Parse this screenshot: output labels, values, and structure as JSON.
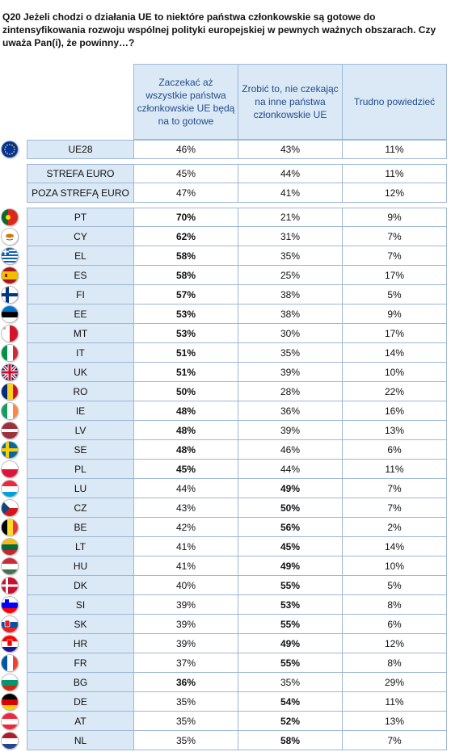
{
  "question": "Q20 Jeżeli chodzi o działania UE to niektóre państwa członkowskie są gotowe do zintensyfikowania rozwoju wspólnej polityki europejskiej w pewnych ważnych obszarach. Czy uważa Pan(i), że powinny…?",
  "columns": [
    "Zaczekać aż wszystkie państwa członkowskie UE będą na to gotowe",
    "Zrobić to, nie czekając na inne państwa członkowskie UE",
    "Trudno powiedzieć"
  ],
  "rows": [
    {
      "label": "UE28",
      "v1": "46%",
      "v2": "43%",
      "v3": "11%"
    },
    {
      "label": "STREFA EURO",
      "v1": "45%",
      "v2": "44%",
      "v3": "11%"
    },
    {
      "label": "POZA STREFĄ EURO",
      "v1": "47%",
      "v2": "41%",
      "v3": "12%"
    },
    {
      "label": "PT",
      "v1": "70%",
      "v2": "21%",
      "v3": "9%"
    },
    {
      "label": "CY",
      "v1": "62%",
      "v2": "31%",
      "v3": "7%"
    },
    {
      "label": "EL",
      "v1": "58%",
      "v2": "35%",
      "v3": "7%"
    },
    {
      "label": "ES",
      "v1": "58%",
      "v2": "25%",
      "v3": "17%"
    },
    {
      "label": "FI",
      "v1": "57%",
      "v2": "38%",
      "v3": "5%"
    },
    {
      "label": "EE",
      "v1": "53%",
      "v2": "38%",
      "v3": "9%"
    },
    {
      "label": "MT",
      "v1": "53%",
      "v2": "30%",
      "v3": "17%"
    },
    {
      "label": "IT",
      "v1": "51%",
      "v2": "35%",
      "v3": "14%"
    },
    {
      "label": "UK",
      "v1": "51%",
      "v2": "39%",
      "v3": "10%"
    },
    {
      "label": "RO",
      "v1": "50%",
      "v2": "28%",
      "v3": "22%"
    },
    {
      "label": "IE",
      "v1": "48%",
      "v2": "36%",
      "v3": "16%"
    },
    {
      "label": "LV",
      "v1": "48%",
      "v2": "39%",
      "v3": "13%"
    },
    {
      "label": "SE",
      "v1": "48%",
      "v2": "46%",
      "v3": "6%"
    },
    {
      "label": "PL",
      "v1": "45%",
      "v2": "44%",
      "v3": "11%"
    },
    {
      "label": "LU",
      "v1": "44%",
      "v2": "49%",
      "v3": "7%"
    },
    {
      "label": "CZ",
      "v1": "43%",
      "v2": "50%",
      "v3": "7%"
    },
    {
      "label": "BE",
      "v1": "42%",
      "v2": "56%",
      "v3": "2%"
    },
    {
      "label": "LT",
      "v1": "41%",
      "v2": "45%",
      "v3": "14%"
    },
    {
      "label": "HU",
      "v1": "41%",
      "v2": "49%",
      "v3": "10%"
    },
    {
      "label": "DK",
      "v1": "40%",
      "v2": "55%",
      "v3": "5%"
    },
    {
      "label": "SI",
      "v1": "39%",
      "v2": "53%",
      "v3": "8%"
    },
    {
      "label": "SK",
      "v1": "39%",
      "v2": "55%",
      "v3": "6%"
    },
    {
      "label": "HR",
      "v1": "39%",
      "v2": "49%",
      "v3": "12%"
    },
    {
      "label": "FR",
      "v1": "37%",
      "v2": "55%",
      "v3": "8%"
    },
    {
      "label": "BG",
      "v1": "36%",
      "v2": "35%",
      "v3": "29%"
    },
    {
      "label": "DE",
      "v1": "35%",
      "v2": "54%",
      "v3": "11%"
    },
    {
      "label": "AT",
      "v1": "35%",
      "v2": "52%",
      "v3": "13%"
    },
    {
      "label": "NL",
      "v1": "35%",
      "v2": "58%",
      "v3": "7%"
    }
  ],
  "colors": {
    "header_bg": "#dbe8f5",
    "header_text": "#1f4e8c",
    "border": "#9db7d6"
  }
}
